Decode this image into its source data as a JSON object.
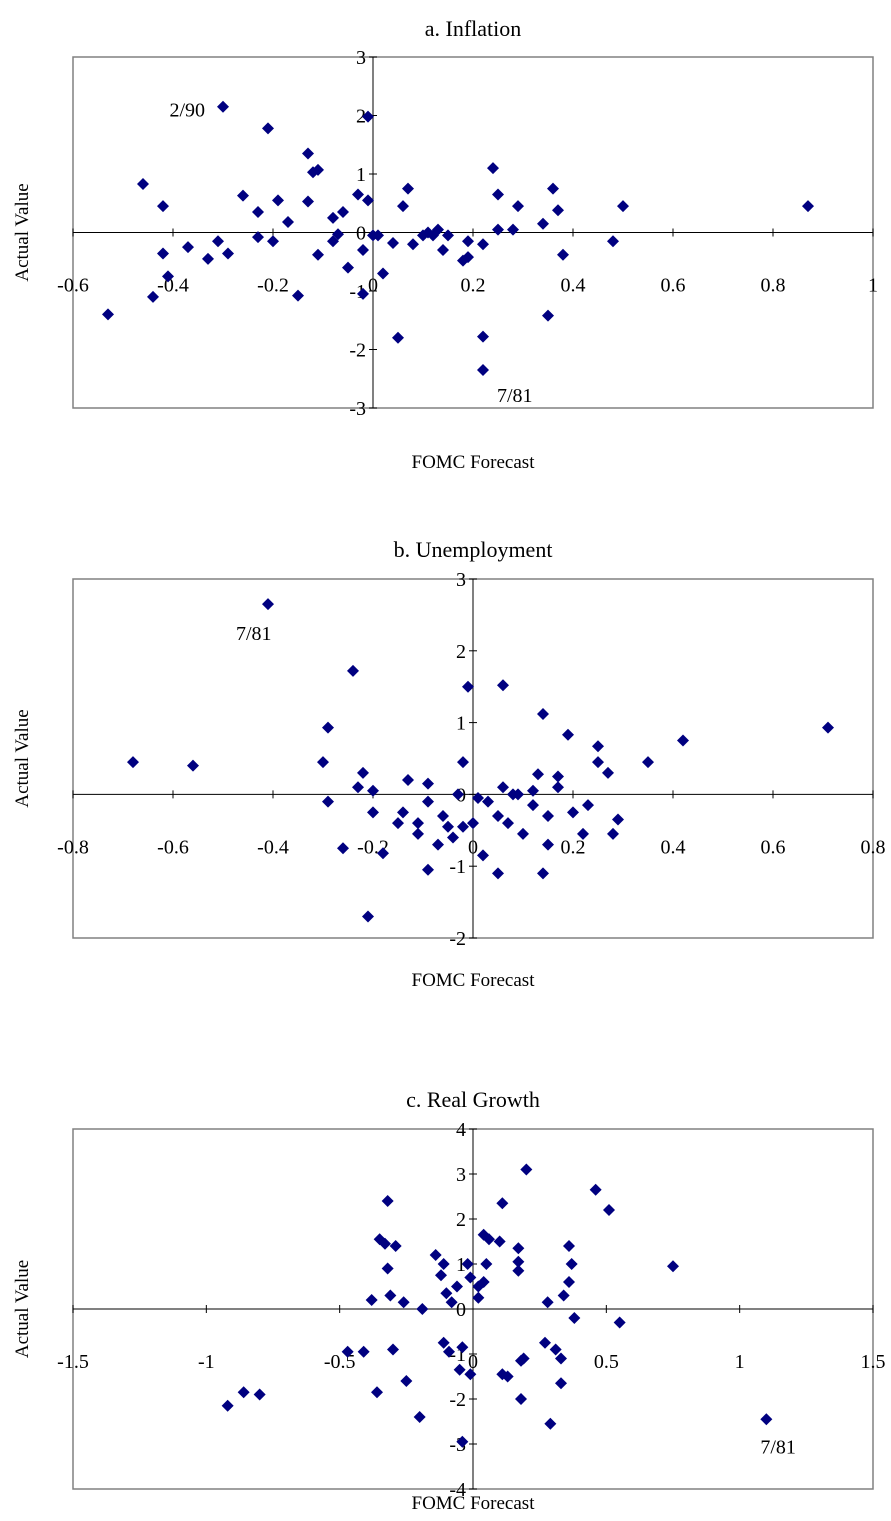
{
  "chart_data": [
    {
      "type": "scatter",
      "title": "a.  Inflation",
      "xlabel": "FOMC Forecast",
      "ylabel": "Actual Value",
      "xlim": [
        -0.6,
        1
      ],
      "ylim": [
        -3,
        3
      ],
      "xticks": [
        "-0.6",
        "-0.4",
        "-0.2",
        "0",
        "0.2",
        "0.4",
        "0.6",
        "0.8",
        "1"
      ],
      "yticks": [
        "3",
        "2",
        "1",
        "0",
        "-1",
        "-2",
        "-3"
      ],
      "marker_color": "#000080",
      "annotations": [
        {
          "text": "2/90",
          "x": -0.3,
          "y": 2.15
        },
        {
          "text": "7/81",
          "x": 0.22,
          "y": -2.35
        }
      ],
      "points": [
        [
          -0.53,
          -1.4
        ],
        [
          -0.46,
          0.83
        ],
        [
          -0.44,
          -1.1
        ],
        [
          -0.42,
          0.45
        ],
        [
          -0.42,
          -0.36
        ],
        [
          -0.41,
          -0.75
        ],
        [
          -0.37,
          -0.25
        ],
        [
          -0.33,
          -0.45
        ],
        [
          -0.31,
          -0.15
        ],
        [
          -0.3,
          2.15
        ],
        [
          -0.29,
          -0.36
        ],
        [
          -0.26,
          0.63
        ],
        [
          -0.23,
          0.35
        ],
        [
          -0.23,
          -0.08
        ],
        [
          -0.21,
          1.78
        ],
        [
          -0.2,
          -0.15
        ],
        [
          -0.19,
          0.55
        ],
        [
          -0.17,
          0.18
        ],
        [
          -0.15,
          -1.08
        ],
        [
          -0.13,
          1.35
        ],
        [
          -0.13,
          0.53
        ],
        [
          -0.12,
          1.03
        ],
        [
          -0.11,
          -0.38
        ],
        [
          -0.11,
          1.07
        ],
        [
          -0.08,
          0.25
        ],
        [
          -0.08,
          -0.15
        ],
        [
          -0.07,
          -0.03
        ],
        [
          -0.06,
          0.35
        ],
        [
          -0.05,
          -0.6
        ],
        [
          -0.03,
          0.65
        ],
        [
          -0.02,
          -1.05
        ],
        [
          -0.02,
          -0.3
        ],
        [
          -0.01,
          0.55
        ],
        [
          -0.01,
          1.98
        ],
        [
          0.0,
          -0.05
        ],
        [
          0.01,
          -0.05
        ],
        [
          0.02,
          -0.7
        ],
        [
          0.04,
          -0.18
        ],
        [
          0.05,
          -1.8
        ],
        [
          0.06,
          0.45
        ],
        [
          0.07,
          0.75
        ],
        [
          0.08,
          -0.2
        ],
        [
          0.1,
          -0.05
        ],
        [
          0.11,
          0.0
        ],
        [
          0.12,
          -0.05
        ],
        [
          0.13,
          0.05
        ],
        [
          0.14,
          -0.3
        ],
        [
          0.15,
          -0.05
        ],
        [
          0.18,
          -0.48
        ],
        [
          0.19,
          -0.42
        ],
        [
          0.19,
          -0.15
        ],
        [
          0.22,
          -0.2
        ],
        [
          0.22,
          -1.78
        ],
        [
          0.22,
          -2.35
        ],
        [
          0.24,
          1.1
        ],
        [
          0.25,
          0.65
        ],
        [
          0.25,
          0.05
        ],
        [
          0.28,
          0.05
        ],
        [
          0.29,
          0.45
        ],
        [
          0.34,
          0.15
        ],
        [
          0.35,
          -1.42
        ],
        [
          0.36,
          0.75
        ],
        [
          0.37,
          0.38
        ],
        [
          0.38,
          -0.38
        ],
        [
          0.48,
          -0.15
        ],
        [
          0.5,
          0.45
        ],
        [
          0.87,
          0.45
        ]
      ]
    },
    {
      "type": "scatter",
      "title": "b.  Unemployment",
      "xlabel": "FOMC Forecast",
      "ylabel": "Actual Value",
      "xlim": [
        -0.8,
        0.8
      ],
      "ylim": [
        -2,
        3
      ],
      "xticks": [
        "-0.8",
        "-0.6",
        "-0.4",
        "-0.2",
        "0",
        "0.2",
        "0.4",
        "0.6",
        "0.8"
      ],
      "yticks": [
        "3",
        "2",
        "1",
        "0",
        "-1",
        "-2"
      ],
      "marker_color": "#000080",
      "annotations": [
        {
          "text": "7/81",
          "x": -0.41,
          "y": 2.65
        }
      ],
      "points": [
        [
          -0.68,
          0.45
        ],
        [
          -0.56,
          0.4
        ],
        [
          -0.41,
          2.65
        ],
        [
          -0.3,
          0.45
        ],
        [
          -0.29,
          0.93
        ],
        [
          -0.29,
          -0.1
        ],
        [
          -0.26,
          -0.75
        ],
        [
          -0.24,
          1.72
        ],
        [
          -0.23,
          0.1
        ],
        [
          -0.22,
          0.3
        ],
        [
          -0.21,
          -1.7
        ],
        [
          -0.2,
          0.05
        ],
        [
          -0.2,
          -0.25
        ],
        [
          -0.18,
          -0.82
        ],
        [
          -0.15,
          -0.4
        ],
        [
          -0.14,
          -0.25
        ],
        [
          -0.13,
          0.2
        ],
        [
          -0.11,
          -0.55
        ],
        [
          -0.11,
          -0.4
        ],
        [
          -0.09,
          0.15
        ],
        [
          -0.09,
          -0.1
        ],
        [
          -0.09,
          -1.05
        ],
        [
          -0.07,
          -0.7
        ],
        [
          -0.06,
          -0.3
        ],
        [
          -0.05,
          -0.45
        ],
        [
          -0.04,
          -0.6
        ],
        [
          -0.03,
          0.0
        ],
        [
          -0.02,
          0.45
        ],
        [
          -0.02,
          -0.45
        ],
        [
          -0.01,
          1.5
        ],
        [
          0.0,
          -0.4
        ],
        [
          0.01,
          -0.05
        ],
        [
          0.02,
          -0.85
        ],
        [
          0.03,
          -0.1
        ],
        [
          0.05,
          -1.1
        ],
        [
          0.05,
          -0.3
        ],
        [
          0.06,
          1.52
        ],
        [
          0.06,
          0.1
        ],
        [
          0.07,
          -0.4
        ],
        [
          0.08,
          0.0
        ],
        [
          0.09,
          0.0
        ],
        [
          0.1,
          -0.55
        ],
        [
          0.12,
          0.05
        ],
        [
          0.12,
          -0.15
        ],
        [
          0.13,
          0.28
        ],
        [
          0.14,
          1.12
        ],
        [
          0.14,
          -1.1
        ],
        [
          0.15,
          -0.3
        ],
        [
          0.15,
          -0.7
        ],
        [
          0.17,
          0.1
        ],
        [
          0.17,
          0.25
        ],
        [
          0.19,
          0.83
        ],
        [
          0.2,
          -0.25
        ],
        [
          0.22,
          -0.55
        ],
        [
          0.23,
          -0.15
        ],
        [
          0.25,
          0.67
        ],
        [
          0.25,
          0.45
        ],
        [
          0.27,
          0.3
        ],
        [
          0.28,
          -0.55
        ],
        [
          0.29,
          -0.35
        ],
        [
          0.35,
          0.45
        ],
        [
          0.42,
          0.75
        ],
        [
          0.71,
          0.93
        ]
      ]
    },
    {
      "type": "scatter",
      "title": "c.  Real Growth",
      "xlabel": "FOMC Forecast",
      "ylabel": "Actual Value",
      "xlim": [
        -1.5,
        1.5
      ],
      "ylim": [
        -4,
        4
      ],
      "xticks": [
        "-1.5",
        "-1",
        "-0.5",
        "0",
        "0.5",
        "1",
        "1.5"
      ],
      "yticks": [
        "4",
        "3",
        "2",
        "1",
        "0",
        "-1",
        "-2",
        "-3",
        "-4"
      ],
      "marker_color": "#000080",
      "annotations": [
        {
          "text": "7/81",
          "x": 1.1,
          "y": -2.45
        }
      ],
      "points": [
        [
          -0.92,
          -2.15
        ],
        [
          -0.86,
          -1.85
        ],
        [
          -0.8,
          -1.9
        ],
        [
          -0.47,
          -0.95
        ],
        [
          -0.41,
          -0.95
        ],
        [
          -0.38,
          0.2
        ],
        [
          -0.36,
          -1.85
        ],
        [
          -0.35,
          1.55
        ],
        [
          -0.33,
          1.45
        ],
        [
          -0.32,
          0.9
        ],
        [
          -0.32,
          2.4
        ],
        [
          -0.31,
          0.3
        ],
        [
          -0.3,
          -0.9
        ],
        [
          -0.29,
          1.4
        ],
        [
          -0.26,
          0.15
        ],
        [
          -0.25,
          -1.6
        ],
        [
          -0.2,
          -2.4
        ],
        [
          -0.19,
          0.0
        ],
        [
          -0.14,
          1.2
        ],
        [
          -0.12,
          0.75
        ],
        [
          -0.11,
          1.0
        ],
        [
          -0.11,
          -0.75
        ],
        [
          -0.1,
          0.35
        ],
        [
          -0.09,
          -0.95
        ],
        [
          -0.08,
          0.15
        ],
        [
          -0.06,
          0.5
        ],
        [
          -0.05,
          -1.35
        ],
        [
          -0.04,
          -0.85
        ],
        [
          -0.04,
          -2.95
        ],
        [
          -0.02,
          1.0
        ],
        [
          -0.01,
          0.7
        ],
        [
          -0.01,
          -1.45
        ],
        [
          0.02,
          0.25
        ],
        [
          0.02,
          0.5
        ],
        [
          0.04,
          1.65
        ],
        [
          0.04,
          0.6
        ],
        [
          0.05,
          1.0
        ],
        [
          0.06,
          1.55
        ],
        [
          0.1,
          1.5
        ],
        [
          0.11,
          2.35
        ],
        [
          0.11,
          -1.45
        ],
        [
          0.13,
          -1.5
        ],
        [
          0.17,
          0.85
        ],
        [
          0.17,
          1.05
        ],
        [
          0.17,
          1.35
        ],
        [
          0.18,
          -1.15
        ],
        [
          0.18,
          -2.0
        ],
        [
          0.19,
          -1.1
        ],
        [
          0.2,
          3.1
        ],
        [
          0.27,
          -0.75
        ],
        [
          0.28,
          0.15
        ],
        [
          0.29,
          -2.55
        ],
        [
          0.31,
          -0.9
        ],
        [
          0.33,
          -1.65
        ],
        [
          0.33,
          -1.1
        ],
        [
          0.34,
          0.3
        ],
        [
          0.36,
          1.4
        ],
        [
          0.36,
          0.6
        ],
        [
          0.37,
          1.0
        ],
        [
          0.38,
          -0.2
        ],
        [
          0.46,
          2.65
        ],
        [
          0.51,
          2.2
        ],
        [
          0.55,
          -0.3
        ],
        [
          0.75,
          0.95
        ],
        [
          1.1,
          -2.45
        ]
      ]
    }
  ]
}
